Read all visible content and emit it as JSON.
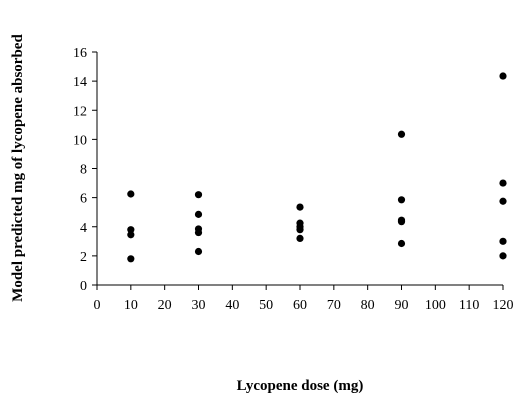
{
  "chart_data": {
    "type": "scatter",
    "title": "",
    "xlabel": "Lycopene dose (mg)",
    "ylabel": "Model predicted mg of lycopene absorbed",
    "xlim": [
      0,
      120
    ],
    "ylim": [
      0,
      16
    ],
    "xticks": [
      0,
      10,
      20,
      30,
      40,
      50,
      60,
      70,
      80,
      90,
      100,
      110,
      120
    ],
    "yticks": [
      0,
      2,
      4,
      6,
      8,
      10,
      12,
      14,
      16
    ],
    "grid": false,
    "legend": "none",
    "series": [
      {
        "points": [
          {
            "x": 10,
            "y": 6.25
          },
          {
            "x": 10,
            "y": 3.8
          },
          {
            "x": 10,
            "y": 3.45
          },
          {
            "x": 10,
            "y": 1.8
          },
          {
            "x": 30,
            "y": 6.2
          },
          {
            "x": 30,
            "y": 4.85
          },
          {
            "x": 30,
            "y": 3.85
          },
          {
            "x": 30,
            "y": 3.6
          },
          {
            "x": 30,
            "y": 2.3
          },
          {
            "x": 60,
            "y": 5.35
          },
          {
            "x": 60,
            "y": 4.25
          },
          {
            "x": 60,
            "y": 4.0
          },
          {
            "x": 60,
            "y": 3.8
          },
          {
            "x": 60,
            "y": 3.2
          },
          {
            "x": 90,
            "y": 10.35
          },
          {
            "x": 90,
            "y": 5.85
          },
          {
            "x": 90,
            "y": 4.45
          },
          {
            "x": 90,
            "y": 4.35
          },
          {
            "x": 90,
            "y": 2.85
          },
          {
            "x": 120,
            "y": 14.35
          },
          {
            "x": 120,
            "y": 7.0
          },
          {
            "x": 120,
            "y": 5.75
          },
          {
            "x": 120,
            "y": 3.0
          },
          {
            "x": 120,
            "y": 2.0
          }
        ],
        "color": "#000000",
        "marker": "filled-circle"
      }
    ]
  }
}
